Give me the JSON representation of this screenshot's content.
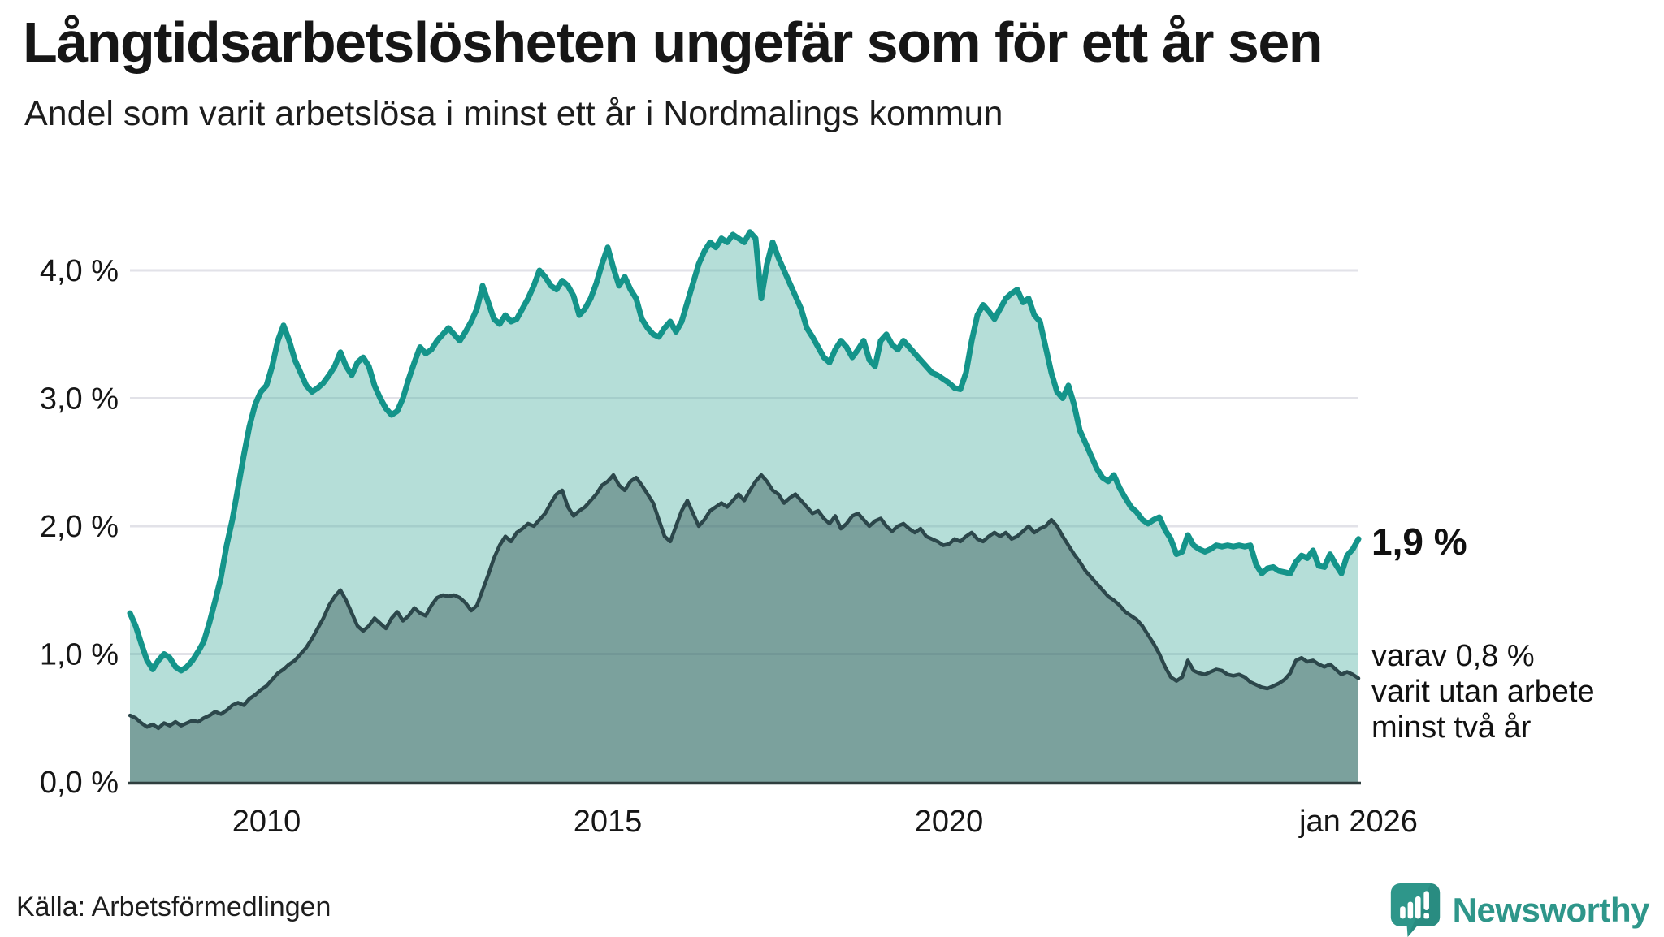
{
  "header": {
    "title": "Långtidsarbetslösheten ungefär som för ett år sen",
    "subtitle": "Andel som varit arbetslösa i minst ett år i Nordmalings kommun"
  },
  "annotations": {
    "latest_total": "1,9 %",
    "secondary": "varav 0,8 %\nvarit utan arbete\nminst två år"
  },
  "footer": {
    "source": "Källa: Arbetsförmedlingen",
    "brand": "Newsworthy"
  },
  "colors": {
    "line_total": "#14948a",
    "fill_total": "rgba(90,181,168,0.45)",
    "line_two_years": "#2c474b",
    "fill_two_years": "rgba(43,76,76,0.42)",
    "gridline": "#e2e2e8",
    "axis": "#2f3e3e",
    "brand_teal": "#2e968a"
  },
  "chart_data": {
    "type": "area",
    "title": "Långtidsarbetslösheten ungefär som för ett år sen",
    "subtitle": "Andel som varit arbetslösa i minst ett år i Nordmalings kommun",
    "unit": "%",
    "frequency": "monthly",
    "x_start": "2008-01",
    "x_end": "2026-01",
    "ylim": [
      0,
      4.3
    ],
    "grid": "horizontal",
    "y_ticks": [
      {
        "value": 0,
        "label": "0,0 %"
      },
      {
        "value": 1,
        "label": "1,0 %"
      },
      {
        "value": 2,
        "label": "2,0 %"
      },
      {
        "value": 3,
        "label": "3,0 %"
      },
      {
        "value": 4,
        "label": "4,0 %"
      }
    ],
    "x_ticks": [
      {
        "year": 2010,
        "label": "2010"
      },
      {
        "year": 2015,
        "label": "2015"
      },
      {
        "year": 2020,
        "label": "2020"
      },
      {
        "year": 2026,
        "label": "jan 2026"
      }
    ],
    "series": [
      {
        "name": "Andel som varit arbetslösa i minst ett år",
        "end_label": "1,9 %",
        "latest_value_pct": 1.9,
        "color": "#14948a",
        "fill": "rgba(90,181,168,0.45)",
        "line_width": 7,
        "values_pct": [
          1.32,
          1.22,
          1.08,
          0.95,
          0.88,
          0.95,
          1.0,
          0.97,
          0.9,
          0.87,
          0.9,
          0.95,
          1.02,
          1.1,
          1.25,
          1.42,
          1.6,
          1.85,
          2.05,
          2.3,
          2.55,
          2.78,
          2.95,
          3.05,
          3.1,
          3.25,
          3.45,
          3.57,
          3.45,
          3.3,
          3.2,
          3.1,
          3.05,
          3.08,
          3.12,
          3.18,
          3.25,
          3.36,
          3.25,
          3.18,
          3.28,
          3.32,
          3.25,
          3.1,
          3.0,
          2.92,
          2.87,
          2.9,
          3.0,
          3.15,
          3.28,
          3.4,
          3.35,
          3.38,
          3.45,
          3.5,
          3.55,
          3.5,
          3.45,
          3.52,
          3.6,
          3.7,
          3.88,
          3.75,
          3.62,
          3.58,
          3.65,
          3.6,
          3.62,
          3.7,
          3.78,
          3.88,
          4.0,
          3.95,
          3.88,
          3.85,
          3.92,
          3.88,
          3.8,
          3.65,
          3.7,
          3.78,
          3.9,
          4.05,
          4.18,
          4.02,
          3.88,
          3.95,
          3.85,
          3.78,
          3.62,
          3.55,
          3.5,
          3.48,
          3.55,
          3.6,
          3.52,
          3.6,
          3.75,
          3.9,
          4.05,
          4.15,
          4.22,
          4.18,
          4.25,
          4.22,
          4.28,
          4.25,
          4.22,
          4.3,
          4.25,
          3.78,
          4.05,
          4.22,
          4.1,
          4.0,
          3.9,
          3.8,
          3.7,
          3.55,
          3.48,
          3.4,
          3.32,
          3.28,
          3.38,
          3.45,
          3.4,
          3.32,
          3.38,
          3.45,
          3.3,
          3.25,
          3.45,
          3.5,
          3.42,
          3.38,
          3.45,
          3.4,
          3.35,
          3.3,
          3.25,
          3.2,
          3.18,
          3.15,
          3.12,
          3.08,
          3.07,
          3.2,
          3.45,
          3.65,
          3.73,
          3.68,
          3.62,
          3.7,
          3.78,
          3.82,
          3.85,
          3.75,
          3.78,
          3.65,
          3.6,
          3.4,
          3.2,
          3.05,
          3.0,
          3.1,
          2.95,
          2.75,
          2.65,
          2.55,
          2.45,
          2.38,
          2.35,
          2.4,
          2.3,
          2.22,
          2.15,
          2.11,
          2.05,
          2.02,
          2.05,
          2.07,
          1.97,
          1.9,
          1.78,
          1.8,
          1.93,
          1.85,
          1.82,
          1.8,
          1.82,
          1.85,
          1.84,
          1.85,
          1.84,
          1.85,
          1.84,
          1.85,
          1.7,
          1.63,
          1.67,
          1.68,
          1.65,
          1.64,
          1.63,
          1.72,
          1.77,
          1.75,
          1.81,
          1.69,
          1.68,
          1.78,
          1.7,
          1.63,
          1.77,
          1.82,
          1.9
        ]
      },
      {
        "name": "varav utan arbete minst två år",
        "end_label": "varav 0,8 % varit utan arbete minst två år",
        "latest_value_pct": 0.8,
        "color": "#2c474b",
        "fill": "rgba(43,76,76,0.42)",
        "line_width": 4.5,
        "values_pct": [
          0.52,
          0.5,
          0.46,
          0.43,
          0.45,
          0.42,
          0.46,
          0.44,
          0.47,
          0.44,
          0.46,
          0.48,
          0.47,
          0.5,
          0.52,
          0.55,
          0.53,
          0.56,
          0.6,
          0.62,
          0.6,
          0.65,
          0.68,
          0.72,
          0.75,
          0.8,
          0.85,
          0.88,
          0.92,
          0.95,
          1.0,
          1.05,
          1.12,
          1.2,
          1.28,
          1.38,
          1.45,
          1.5,
          1.42,
          1.32,
          1.22,
          1.18,
          1.22,
          1.28,
          1.24,
          1.2,
          1.28,
          1.33,
          1.26,
          1.3,
          1.36,
          1.32,
          1.3,
          1.38,
          1.44,
          1.46,
          1.45,
          1.46,
          1.44,
          1.4,
          1.34,
          1.38,
          1.5,
          1.62,
          1.75,
          1.85,
          1.92,
          1.88,
          1.95,
          1.98,
          2.02,
          2.0,
          2.05,
          2.1,
          2.18,
          2.25,
          2.28,
          2.15,
          2.08,
          2.12,
          2.15,
          2.2,
          2.25,
          2.32,
          2.35,
          2.4,
          2.32,
          2.28,
          2.35,
          2.38,
          2.32,
          2.25,
          2.18,
          2.05,
          1.92,
          1.88,
          2.0,
          2.12,
          2.2,
          2.1,
          2.0,
          2.05,
          2.12,
          2.15,
          2.18,
          2.15,
          2.2,
          2.25,
          2.2,
          2.28,
          2.35,
          2.4,
          2.35,
          2.28,
          2.25,
          2.18,
          2.22,
          2.25,
          2.2,
          2.15,
          2.1,
          2.12,
          2.06,
          2.02,
          2.08,
          1.98,
          2.02,
          2.08,
          2.1,
          2.05,
          2.0,
          2.04,
          2.06,
          2.0,
          1.96,
          2.0,
          2.02,
          1.98,
          1.95,
          1.98,
          1.92,
          1.9,
          1.88,
          1.85,
          1.86,
          1.9,
          1.88,
          1.92,
          1.95,
          1.9,
          1.88,
          1.92,
          1.95,
          1.92,
          1.95,
          1.9,
          1.92,
          1.96,
          2.0,
          1.95,
          1.98,
          2.0,
          2.05,
          2.0,
          1.92,
          1.85,
          1.78,
          1.72,
          1.65,
          1.6,
          1.55,
          1.5,
          1.45,
          1.42,
          1.38,
          1.33,
          1.3,
          1.27,
          1.22,
          1.15,
          1.08,
          1.0,
          0.9,
          0.82,
          0.79,
          0.82,
          0.95,
          0.87,
          0.85,
          0.84,
          0.86,
          0.88,
          0.87,
          0.84,
          0.83,
          0.84,
          0.82,
          0.78,
          0.76,
          0.74,
          0.73,
          0.75,
          0.77,
          0.8,
          0.85,
          0.95,
          0.97,
          0.94,
          0.95,
          0.92,
          0.9,
          0.92,
          0.88,
          0.84,
          0.86,
          0.84,
          0.81
        ]
      }
    ]
  }
}
